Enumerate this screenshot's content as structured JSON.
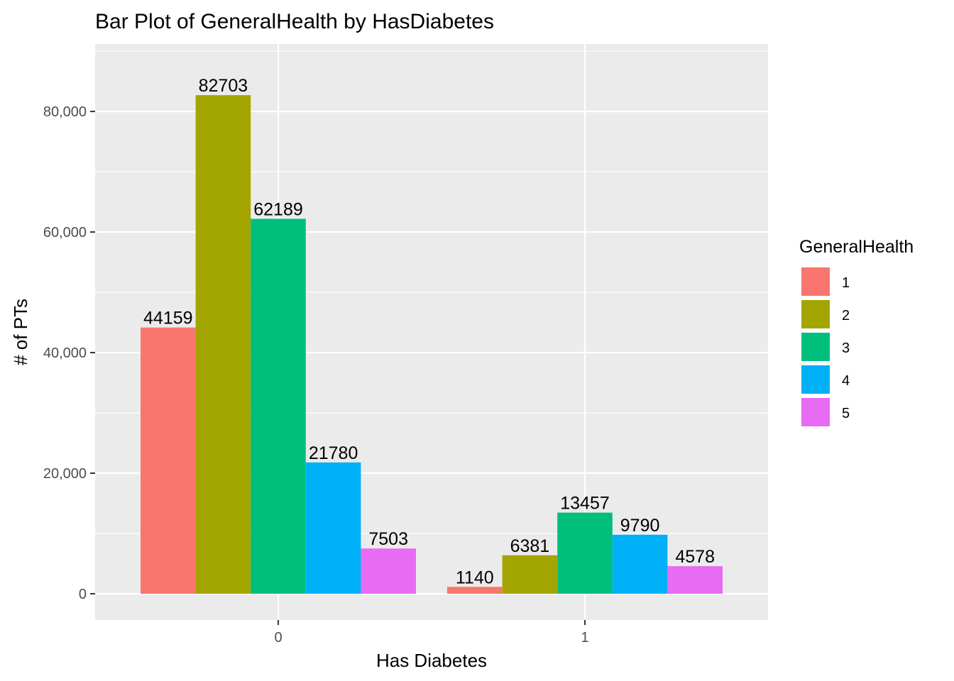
{
  "chart_data": {
    "type": "bar",
    "title": "Bar Plot of GeneralHealth by HasDiabetes",
    "xlabel": "Has Diabetes",
    "ylabel": "# of PTs",
    "categories": [
      "0",
      "1"
    ],
    "series": [
      {
        "name": "1",
        "color": "#F8766D",
        "values": [
          44159,
          1140
        ]
      },
      {
        "name": "2",
        "color": "#A3A500",
        "values": [
          82703,
          6381
        ]
      },
      {
        "name": "3",
        "color": "#00BF7D",
        "values": [
          62189,
          13457
        ]
      },
      {
        "name": "4",
        "color": "#00B0F6",
        "values": [
          21780,
          9790
        ]
      },
      {
        "name": "5",
        "color": "#E76BF3",
        "values": [
          7503,
          4578
        ]
      }
    ],
    "yticks": [
      0,
      20000,
      40000,
      60000,
      80000
    ],
    "ytick_labels": [
      "0",
      "20,000",
      "40,000",
      "60,000",
      "80,000"
    ],
    "ylim": [
      0,
      86838
    ],
    "legend": {
      "title": "GeneralHealth",
      "position": "right"
    },
    "grid": true,
    "panel_color": "#EBEBEB",
    "grid_color": "#FFFFFF"
  }
}
